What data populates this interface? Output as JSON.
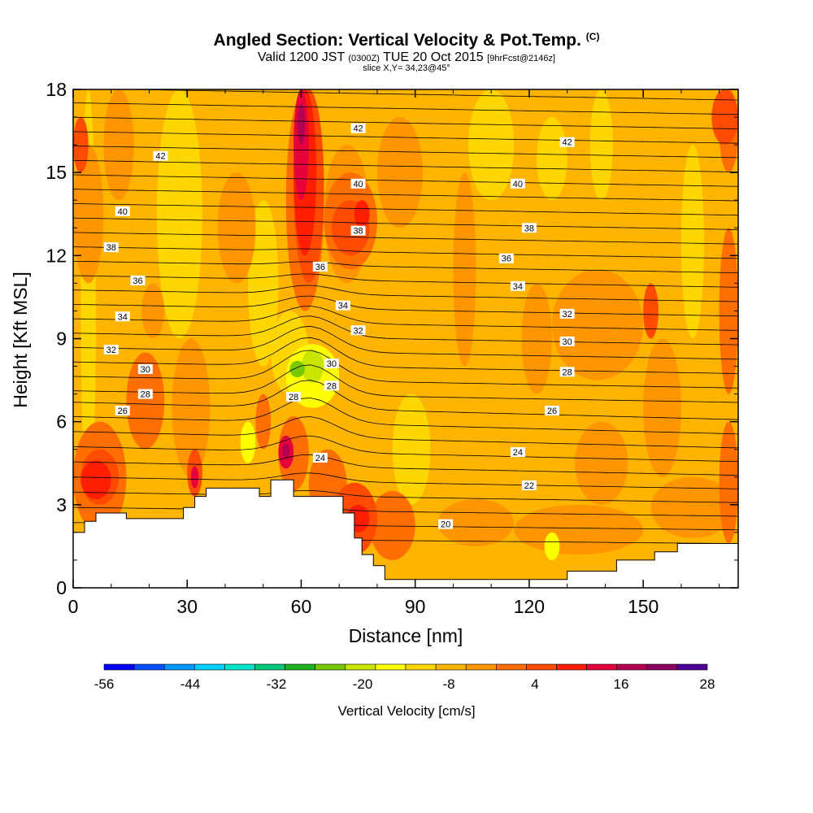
{
  "chart_data": {
    "type": "heatmap",
    "title": "Angled Section: Vertical Velocity & Pot.Temp.",
    "title_unit": "(C)",
    "subtitle_main": "Valid 1200 JST",
    "subtitle_utc": "(0300Z)",
    "subtitle_date": "TUE 20 Oct 2015",
    "subtitle_run": "[9hrFcst@2146z]",
    "slice_label": "slice X,Y= 34,23@45°",
    "xlabel": "Distance [nm]",
    "ylabel": "Height [Kft MSL]",
    "xlim": [
      0,
      175
    ],
    "ylim": [
      0,
      18
    ],
    "x_ticks": [
      "0",
      "30",
      "60",
      "90",
      "120",
      "150"
    ],
    "y_ticks": [
      "0",
      "3",
      "6",
      "9",
      "12",
      "15",
      "18"
    ],
    "colorbar": {
      "label": "Vertical Velocity [cm/s]",
      "tick_labels": [
        "-56",
        "-44",
        "-32",
        "-20",
        "-8",
        "4",
        "16",
        "28"
      ],
      "colors": [
        "#0000ff",
        "#0050ff",
        "#0096ff",
        "#00d2ff",
        "#00e6c8",
        "#00c878",
        "#1eb41e",
        "#78c800",
        "#c8e600",
        "#ffff00",
        "#ffd700",
        "#ffb400",
        "#ff9600",
        "#ff6e00",
        "#ff4b00",
        "#ff1e00",
        "#e6003c",
        "#b40050",
        "#8c0064",
        "#500096"
      ]
    },
    "terrain": [
      [
        0,
        2
      ],
      [
        3,
        2
      ],
      [
        3,
        2.4
      ],
      [
        6,
        2.4
      ],
      [
        6,
        2.7
      ],
      [
        14,
        2.7
      ],
      [
        14,
        2.5
      ],
      [
        29,
        2.5
      ],
      [
        29,
        2.9
      ],
      [
        32,
        2.9
      ],
      [
        32,
        3.3
      ],
      [
        35,
        3.3
      ],
      [
        35,
        3.6
      ],
      [
        49,
        3.6
      ],
      [
        49,
        3.3
      ],
      [
        52,
        3.3
      ],
      [
        52,
        3.9
      ],
      [
        58,
        3.9
      ],
      [
        58,
        3.3
      ],
      [
        71,
        3.3
      ],
      [
        71,
        2.7
      ],
      [
        74,
        2.7
      ],
      [
        74,
        1.8
      ],
      [
        76,
        1.8
      ],
      [
        76,
        1.2
      ],
      [
        79,
        1.2
      ],
      [
        79,
        0.8
      ],
      [
        82,
        0.8
      ],
      [
        82,
        0.3
      ],
      [
        130,
        0.3
      ],
      [
        130,
        0.6
      ],
      [
        143,
        0.6
      ],
      [
        143,
        1
      ],
      [
        153,
        1
      ],
      [
        153,
        1.3
      ],
      [
        159,
        1.3
      ],
      [
        159,
        1.6
      ],
      [
        175,
        1.6
      ]
    ],
    "theta_labels": [
      {
        "v": "42",
        "x": 23,
        "y": 15.6
      },
      {
        "v": "42",
        "x": 75,
        "y": 16.6
      },
      {
        "v": "42",
        "x": 130,
        "y": 16.1
      },
      {
        "v": "40",
        "x": 13,
        "y": 13.6
      },
      {
        "v": "40",
        "x": 75,
        "y": 14.6
      },
      {
        "v": "40",
        "x": 117,
        "y": 14.6
      },
      {
        "v": "38",
        "x": 10,
        "y": 12.3
      },
      {
        "v": "38",
        "x": 75,
        "y": 12.9
      },
      {
        "v": "38",
        "x": 120,
        "y": 13
      },
      {
        "v": "36",
        "x": 17,
        "y": 11.1
      },
      {
        "v": "36",
        "x": 65,
        "y": 11.6
      },
      {
        "v": "36",
        "x": 114,
        "y": 11.9
      },
      {
        "v": "34",
        "x": 13,
        "y": 9.8
      },
      {
        "v": "34",
        "x": 71,
        "y": 10.2
      },
      {
        "v": "34",
        "x": 117,
        "y": 10.9
      },
      {
        "v": "32",
        "x": 10,
        "y": 8.6
      },
      {
        "v": "32",
        "x": 75,
        "y": 9.3
      },
      {
        "v": "32",
        "x": 130,
        "y": 9.9
      },
      {
        "v": "30",
        "x": 19,
        "y": 7.9
      },
      {
        "v": "30",
        "x": 68,
        "y": 8.1
      },
      {
        "v": "30",
        "x": 130,
        "y": 8.9
      },
      {
        "v": "28",
        "x": 19,
        "y": 7
      },
      {
        "v": "28",
        "x": 58,
        "y": 6.9
      },
      {
        "v": "28",
        "x": 68,
        "y": 7.3
      },
      {
        "v": "28",
        "x": 130,
        "y": 7.8
      },
      {
        "v": "26",
        "x": 13,
        "y": 6.4
      },
      {
        "v": "26",
        "x": 126,
        "y": 6.4
      },
      {
        "v": "24",
        "x": 65,
        "y": 4.7
      },
      {
        "v": "24",
        "x": 117,
        "y": 4.9
      },
      {
        "v": "22",
        "x": 120,
        "y": 3.7
      },
      {
        "v": "20",
        "x": 98,
        "y": 2.3
      }
    ]
  }
}
